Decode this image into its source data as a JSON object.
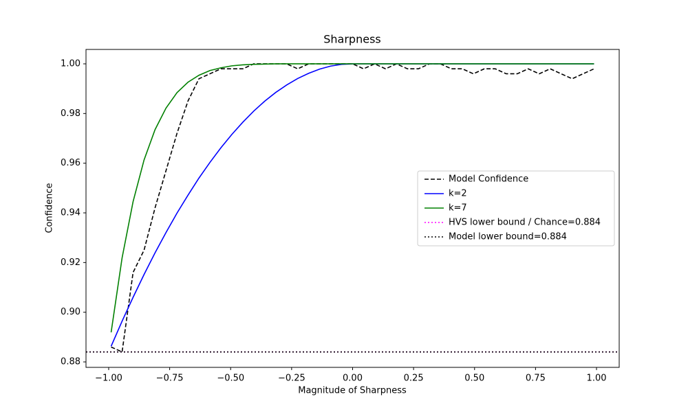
{
  "chart_data": {
    "type": "line",
    "title": "Sharpness",
    "x_label": "Magnitude of Sharpness",
    "y_label": "Confidence",
    "x": [
      -0.99,
      -0.945,
      -0.9,
      -0.855,
      -0.81,
      -0.765,
      -0.72,
      -0.675,
      -0.63,
      -0.585,
      -0.54,
      -0.495,
      -0.45,
      -0.405,
      -0.36,
      -0.315,
      -0.27,
      -0.225,
      -0.18,
      -0.135,
      -0.09,
      -0.045,
      0,
      0.045,
      0.09,
      0.135,
      0.18,
      0.225,
      0.27,
      0.315,
      0.36,
      0.405,
      0.45,
      0.495,
      0.54,
      0.585,
      0.63,
      0.675,
      0.72,
      0.765,
      0.81,
      0.855,
      0.9,
      0.945,
      0.99
    ],
    "series": [
      {
        "name": "Model Confidence",
        "color": "#000000",
        "style": "dashed",
        "values": [
          0.886,
          0.884,
          0.916,
          0.925,
          0.942,
          0.957,
          0.972,
          0.985,
          0.994,
          0.996,
          0.998,
          0.998,
          0.998,
          1.0,
          1.0,
          1.0,
          1.0,
          0.998,
          1.0,
          1.0,
          1.0,
          1.0,
          1.0,
          0.998,
          1.0,
          0.998,
          1.0,
          0.998,
          0.998,
          1.0,
          1.0,
          0.998,
          0.998,
          0.996,
          0.998,
          0.998,
          0.996,
          0.996,
          0.998,
          0.996,
          0.998,
          0.996,
          0.994,
          0.996,
          0.998
        ]
      },
      {
        "name": "k=2",
        "color": "#0000ff",
        "style": "solid",
        "values": [
          0.8863,
          0.8964,
          0.906,
          0.9152,
          0.9239,
          0.9321,
          0.9399,
          0.9471,
          0.954,
          0.9603,
          0.9662,
          0.9716,
          0.9765,
          0.981,
          0.985,
          0.9885,
          0.9915,
          0.9941,
          0.9962,
          0.9979,
          0.9991,
          0.9998,
          1.0,
          1.0,
          1.0,
          1.0,
          1.0,
          1.0,
          1.0,
          1.0,
          1.0,
          1.0,
          1.0,
          1.0,
          1.0,
          1.0,
          1.0,
          1.0,
          1.0,
          1.0,
          1.0,
          1.0,
          1.0,
          1.0,
          1.0
        ]
      },
      {
        "name": "k=7",
        "color": "#008000",
        "style": "solid",
        "values": [
          0.8919,
          0.9219,
          0.9445,
          0.9613,
          0.9735,
          0.9822,
          0.9884,
          0.9926,
          0.9954,
          0.9973,
          0.9984,
          0.9992,
          0.9996,
          0.9998,
          0.9999,
          1.0,
          1.0,
          1.0,
          1.0,
          1.0,
          1.0,
          1.0,
          1.0,
          1.0,
          1.0,
          1.0,
          1.0,
          1.0,
          1.0,
          1.0,
          1.0,
          1.0,
          1.0,
          1.0,
          1.0,
          1.0,
          1.0,
          1.0,
          1.0,
          1.0,
          1.0,
          1.0,
          1.0,
          1.0,
          1.0
        ]
      }
    ],
    "hlines": [
      {
        "name": "HVS lower bound / Chance=0.884",
        "color": "#ff00ff",
        "style": "dotted",
        "value": 0.884
      },
      {
        "name": "Model lower bound=0.884",
        "color": "#000000",
        "style": "dotted",
        "value": 0.884
      }
    ],
    "xlim": [
      -1.093,
      1.093
    ],
    "ylim": [
      0.8778,
      1.0058
    ],
    "xticks": [
      {
        "value": -1,
        "label": "−1.00"
      },
      {
        "value": -0.75,
        "label": "−0.75"
      },
      {
        "value": -0.5,
        "label": "−0.50"
      },
      {
        "value": -0.25,
        "label": "−0.25"
      },
      {
        "value": 0,
        "label": "0.00"
      },
      {
        "value": 0.25,
        "label": "0.25"
      },
      {
        "value": 0.5,
        "label": "0.50"
      },
      {
        "value": 0.75,
        "label": "0.75"
      },
      {
        "value": 1,
        "label": "1.00"
      }
    ],
    "yticks": [
      {
        "value": 0.88,
        "label": "0.88"
      },
      {
        "value": 0.9,
        "label": "0.90"
      },
      {
        "value": 0.92,
        "label": "0.92"
      },
      {
        "value": 0.94,
        "label": "0.94"
      },
      {
        "value": 0.96,
        "label": "0.96"
      },
      {
        "value": 0.98,
        "label": "0.98"
      },
      {
        "value": 1,
        "label": "1.00"
      }
    ],
    "grid": false,
    "legend": "center right"
  }
}
